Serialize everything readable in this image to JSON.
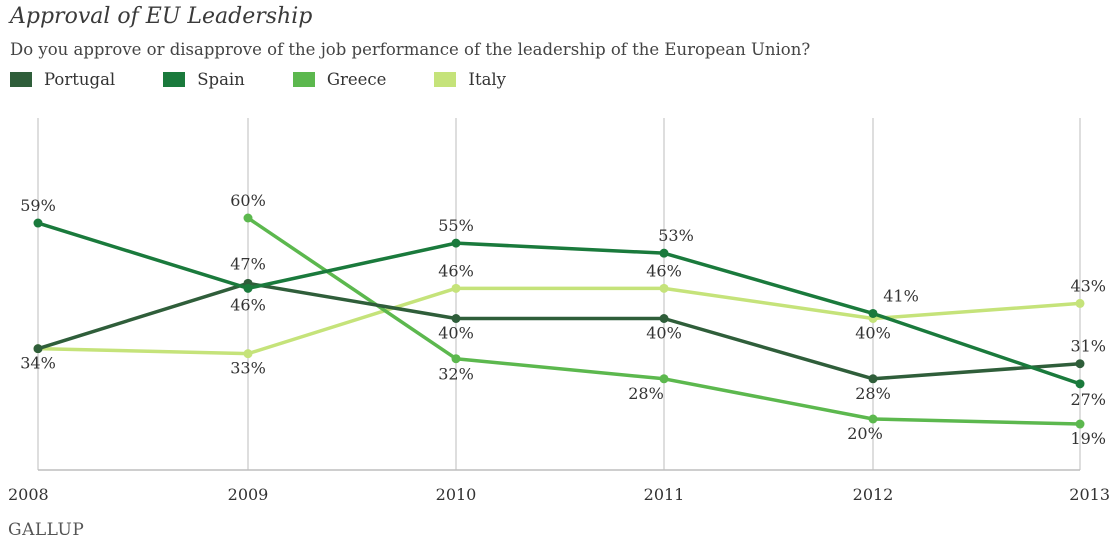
{
  "chart_data": {
    "type": "line",
    "title": "Approval of EU Leadership",
    "subtitle": "Do you approve or disapprove of the job performance of the leadership of the European Union?",
    "x": [
      "2008",
      "2009",
      "2010",
      "2011",
      "2012",
      "2013"
    ],
    "ylim": [
      0,
      70
    ],
    "grid": "vertical",
    "legend_position": "top",
    "series": [
      {
        "name": "Portugal",
        "color": "#2f5e3a",
        "values": [
          34,
          47,
          40,
          40,
          28,
          31
        ]
      },
      {
        "name": "Spain",
        "color": "#1a7a3c",
        "values": [
          59,
          46,
          55,
          53,
          41,
          27
        ]
      },
      {
        "name": "Greece",
        "color": "#5cb84e",
        "values": [
          null,
          60,
          32,
          28,
          20,
          19
        ]
      },
      {
        "name": "Italy",
        "color": "#c5e37a",
        "values": [
          34,
          33,
          46,
          46,
          40,
          43
        ]
      }
    ],
    "data_labels": [
      {
        "text": "59%",
        "series": "Spain",
        "x": "2008"
      },
      {
        "text": "34%",
        "series": "Portugal",
        "x": "2008"
      },
      {
        "text": "60%",
        "series": "Greece",
        "x": "2009"
      },
      {
        "text": "47%",
        "series": "Portugal",
        "x": "2009"
      },
      {
        "text": "46%",
        "series": "Spain",
        "x": "2009"
      },
      {
        "text": "33%",
        "series": "Italy",
        "x": "2009"
      },
      {
        "text": "55%",
        "series": "Spain",
        "x": "2010"
      },
      {
        "text": "46%",
        "series": "Italy",
        "x": "2010"
      },
      {
        "text": "40%",
        "series": "Portugal",
        "x": "2010"
      },
      {
        "text": "32%",
        "series": "Greece",
        "x": "2010"
      },
      {
        "text": "53%",
        "series": "Spain",
        "x": "2011"
      },
      {
        "text": "46%",
        "series": "Italy",
        "x": "2011"
      },
      {
        "text": "40%",
        "series": "Portugal",
        "x": "2011"
      },
      {
        "text": "28%",
        "series": "Greece",
        "x": "2011"
      },
      {
        "text": "41%",
        "series": "Spain",
        "x": "2012"
      },
      {
        "text": "40%",
        "series": "Italy",
        "x": "2012"
      },
      {
        "text": "28%",
        "series": "Portugal",
        "x": "2012"
      },
      {
        "text": "20%",
        "series": "Greece",
        "x": "2012"
      },
      {
        "text": "43%",
        "series": "Italy",
        "x": "2013"
      },
      {
        "text": "31%",
        "series": "Portugal",
        "x": "2013"
      },
      {
        "text": "27%",
        "series": "Spain",
        "x": "2013"
      },
      {
        "text": "19%",
        "series": "Greece",
        "x": "2013"
      }
    ]
  },
  "source": "GALLUP"
}
